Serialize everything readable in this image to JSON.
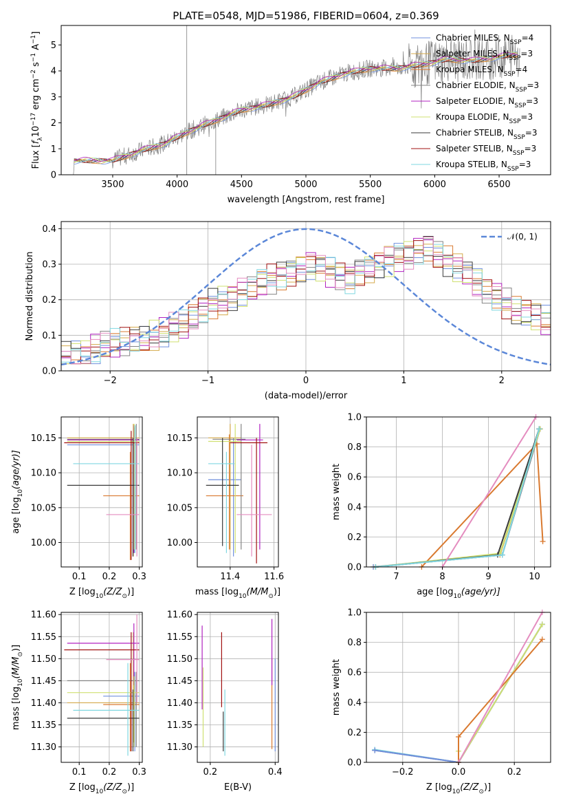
{
  "colors": {
    "Chabrier MILES": "#6f8fdd",
    "Salpeter MILES": "#d4a94a",
    "Kroupa MILES": "#d9792f",
    "Chabrier ELODIE": "#838383",
    "Salpeter ELODIE": "#b020c0",
    "Kroupa ELODIE": "#cfe070",
    "Chabrier STELIB": "#3a3a3a",
    "Salpeter STELIB": "#a01010",
    "Kroupa STELIB": "#7fd7e0",
    "pink": "#e48cbf",
    "normal_curve": "#5b87d8",
    "spectrum": "#7f7f7f"
  },
  "chart_data": [
    {
      "type": "line",
      "title": "PLATE=0548, MJD=51986, FIBERID=0604, z=0.369",
      "xlabel": "wavelength [Angstrom, rest frame]",
      "ylabel_parts": {
        "a": "Flux [",
        "b": "f",
        "c": "λ",
        "d": "10",
        "e": "−17",
        "f": " erg cm",
        "g": "−2",
        "h": " s",
        "i": "−1",
        "j": " A",
        "k": "−1",
        "l": "]"
      },
      "xlim": [
        3100,
        6900
      ],
      "ylim": [
        0,
        5.75
      ],
      "xticks": [
        3500,
        4000,
        4500,
        5000,
        5500,
        6000,
        6500
      ],
      "yticks": [
        0,
        1,
        2,
        3,
        4,
        5
      ],
      "continuum_x": [
        3200,
        3500,
        3700,
        3900,
        4100,
        4300,
        4500,
        4700,
        4900,
        5100,
        5300,
        5500,
        5700,
        5900,
        6100,
        6300,
        6500,
        6700
      ],
      "continuum_y": [
        0.55,
        0.55,
        0.9,
        1.2,
        1.7,
        2.1,
        2.5,
        2.7,
        3.0,
        3.55,
        3.9,
        4.1,
        4.1,
        4.25,
        4.45,
        4.4,
        4.55,
        4.7
      ],
      "legend": [
        {
          "name": "Chabrier MILES",
          "n": "4"
        },
        {
          "name": "Salpeter MILES",
          "n": "3"
        },
        {
          "name": "Kroupa MILES",
          "n": "4"
        },
        {
          "name": "Chabrier ELODIE",
          "n": "3"
        },
        {
          "name": "Salpeter ELODIE",
          "n": "3"
        },
        {
          "name": "Kroupa ELODIE",
          "n": "3"
        },
        {
          "name": "Chabrier STELIB",
          "n": "3"
        },
        {
          "name": "Salpeter STELIB",
          "n": "3"
        },
        {
          "name": "Kroupa STELIB",
          "n": "3"
        }
      ]
    },
    {
      "type": "line",
      "xlabel": "(data-model)/error",
      "ylabel": "Normed distribution",
      "xlim": [
        -2.5,
        2.5
      ],
      "ylim": [
        0,
        0.42
      ],
      "xticks": [
        -2,
        -1,
        0,
        1,
        2
      ],
      "yticks": [
        0.0,
        0.1,
        0.2,
        0.3,
        0.4
      ],
      "legend_label": "𝒩(0, 1)",
      "bin_width": 0.1,
      "bin_start": -2.5,
      "base_heights": [
        0.04,
        0.045,
        0.05,
        0.06,
        0.07,
        0.075,
        0.08,
        0.085,
        0.09,
        0.1,
        0.11,
        0.12,
        0.13,
        0.15,
        0.17,
        0.19,
        0.2,
        0.21,
        0.22,
        0.23,
        0.25,
        0.26,
        0.27,
        0.28,
        0.29,
        0.3,
        0.29,
        0.28,
        0.27,
        0.26,
        0.28,
        0.29,
        0.3,
        0.31,
        0.32,
        0.33,
        0.34,
        0.35,
        0.33,
        0.31,
        0.29,
        0.27,
        0.25,
        0.23,
        0.21,
        0.19,
        0.17,
        0.16,
        0.15,
        0.14
      ]
    },
    {
      "type": "scatter",
      "xlabel_parts": {
        "a": "Z [log",
        "b": "10",
        "c": "(Z/Z",
        "d": "⊙",
        "e": ")]"
      },
      "ylabel_parts": {
        "a": "age  [log",
        "b": "10",
        "c": "(age/yr)]"
      },
      "xlim": [
        0.04,
        0.31
      ],
      "ylim": [
        9.965,
        10.18
      ],
      "xticks": [
        0.1,
        0.2,
        0.3
      ],
      "xtick_labels": [
        "0.1",
        "0.2",
        "0.3"
      ],
      "yticks": [
        10.0,
        10.05,
        10.1,
        10.15
      ],
      "ytick_labels": [
        "10.00",
        "10.05",
        "10.10",
        "10.15"
      ],
      "points": [
        {
          "c": "#6f8fdd",
          "x": 0.285,
          "y": 10.14,
          "xl": 0.06,
          "xh": 0.3,
          "yl": 9.985,
          "yh": 10.165
        },
        {
          "c": "#d4a94a",
          "x": 0.28,
          "y": 10.15,
          "xl": 0.06,
          "xh": 0.3,
          "yl": 9.98,
          "yh": 10.17
        },
        {
          "c": "#d9792f",
          "x": 0.27,
          "y": 10.067,
          "xl": 0.18,
          "xh": 0.3,
          "yl": 9.975,
          "yh": 10.13
        },
        {
          "c": "#838383",
          "x": 0.29,
          "y": 10.148,
          "xl": 0.06,
          "xh": 0.3,
          "yl": 9.99,
          "yh": 10.17
        },
        {
          "c": "#b020c0",
          "x": 0.282,
          "y": 10.147,
          "xl": 0.06,
          "xh": 0.3,
          "yl": 9.985,
          "yh": 10.168
        },
        {
          "c": "#cfe070",
          "x": 0.283,
          "y": 10.145,
          "xl": 0.06,
          "xh": 0.3,
          "yl": 9.99,
          "yh": 10.17
        },
        {
          "c": "#3a3a3a",
          "x": 0.279,
          "y": 10.082,
          "xl": 0.06,
          "xh": 0.3,
          "yl": 9.98,
          "yh": 10.15
        },
        {
          "c": "#a01010",
          "x": 0.273,
          "y": 10.143,
          "xl": 0.05,
          "xh": 0.3,
          "yl": 9.975,
          "yh": 10.16
        },
        {
          "c": "#7fd7e0",
          "x": 0.286,
          "y": 10.113,
          "xl": 0.08,
          "xh": 0.3,
          "yl": 9.985,
          "yh": 10.168
        },
        {
          "c": "#e48cbf",
          "x": 0.292,
          "y": 10.04,
          "xl": 0.19,
          "xh": 0.3,
          "yl": 9.98,
          "yh": 10.15
        }
      ]
    },
    {
      "type": "scatter",
      "xlabel_parts": {
        "a": "mass [log",
        "b": "10",
        "c": "(M/M",
        "d": "⊙",
        "e": ")]"
      },
      "xlim": [
        11.25,
        11.62
      ],
      "ylim": [
        9.965,
        10.18
      ],
      "xticks": [
        11.4,
        11.6
      ],
      "xtick_labels": [
        "11.4",
        "11.6"
      ],
      "yticks": [
        10.0,
        10.05,
        10.1,
        10.15
      ],
      "ytick_labels": [
        "10.00",
        "10.05",
        "10.10",
        "10.15"
      ],
      "points": [
        {
          "c": "#6f8fdd",
          "x": 11.415,
          "y": 10.09,
          "xl": 11.3,
          "xh": 11.45,
          "yl": 9.98,
          "yh": 10.15
        },
        {
          "c": "#d4a94a",
          "x": 11.4,
          "y": 10.15,
          "xl": 11.3,
          "xh": 11.45,
          "yl": 9.99,
          "yh": 10.17
        },
        {
          "c": "#d9792f",
          "x": 11.396,
          "y": 10.067,
          "xl": 11.29,
          "xh": 11.46,
          "yl": 9.99,
          "yh": 10.155
        },
        {
          "c": "#838383",
          "x": 11.45,
          "y": 10.148,
          "xl": 11.32,
          "xh": 11.47,
          "yl": 9.99,
          "yh": 10.17
        },
        {
          "c": "#b020c0",
          "x": 11.535,
          "y": 10.147,
          "xl": 11.43,
          "xh": 11.55,
          "yl": 9.99,
          "yh": 10.17
        },
        {
          "c": "#cfe070",
          "x": 11.423,
          "y": 10.145,
          "xl": 11.3,
          "xh": 11.45,
          "yl": 9.985,
          "yh": 10.17
        },
        {
          "c": "#3a3a3a",
          "x": 11.365,
          "y": 10.082,
          "xl": 11.29,
          "xh": 11.44,
          "yl": 9.995,
          "yh": 10.15
        },
        {
          "c": "#a01010",
          "x": 11.52,
          "y": 10.143,
          "xl": 11.4,
          "xh": 11.57,
          "yl": 9.97,
          "yh": 10.15
        },
        {
          "c": "#7fd7e0",
          "x": 11.383,
          "y": 10.113,
          "xl": 11.3,
          "xh": 11.42,
          "yl": 9.985,
          "yh": 10.13
        },
        {
          "c": "#e48cbf",
          "x": 11.498,
          "y": 10.04,
          "xl": 11.43,
          "xh": 11.59,
          "yl": 9.98,
          "yh": 10.14
        }
      ]
    },
    {
      "type": "line",
      "xlabel_parts": {
        "a": "age  [log",
        "b": "10",
        "c": "(age/yr)]"
      },
      "ylabel": "mass weight",
      "xlim": [
        6.35,
        10.35
      ],
      "ylim": [
        0,
        1.0
      ],
      "xticks": [
        7,
        8,
        9,
        10
      ],
      "xtick_labels": [
        "7",
        "8",
        "9",
        "10"
      ],
      "yticks": [
        0,
        0.2,
        0.4,
        0.6,
        0.8,
        1.0
      ],
      "ytick_labels": [
        "0.0",
        "0.2",
        "0.4",
        "0.6",
        "0.8",
        "1.0"
      ],
      "series": [
        {
          "c": "#d9792f",
          "x": [
            7.55,
            10.05,
            10.18
          ],
          "y": [
            0.0,
            0.82,
            0.17
          ]
        },
        {
          "c": "#d4a94a",
          "x": [
            6.5,
            9.25,
            10.12
          ],
          "y": [
            0.0,
            0.08,
            0.92
          ]
        },
        {
          "c": "#6f8fdd",
          "x": [
            6.5,
            9.3,
            10.12
          ],
          "y": [
            0.0,
            0.08,
            0.92
          ]
        },
        {
          "c": "#838383",
          "x": [
            6.55,
            9.3,
            10.12
          ],
          "y": [
            0.0,
            0.08,
            0.92
          ]
        },
        {
          "c": "#cfe070",
          "x": [
            6.55,
            9.25,
            10.12
          ],
          "y": [
            0.0,
            0.09,
            0.92
          ]
        },
        {
          "c": "#3a3a3a",
          "x": [
            6.55,
            9.2,
            10.1
          ],
          "y": [
            0.0,
            0.08,
            0.92
          ]
        },
        {
          "c": "#7fd7e0",
          "x": [
            6.55,
            9.3,
            10.1
          ],
          "y": [
            0.0,
            0.08,
            0.92
          ]
        },
        {
          "c": "#e48cbf",
          "x": [
            8.0,
            10.03
          ],
          "y": [
            0.0,
            1.0
          ]
        }
      ]
    },
    {
      "type": "scatter",
      "xlabel_parts": {
        "a": "Z [log",
        "b": "10",
        "c": "(Z/Z",
        "d": "⊙",
        "e": ")]"
      },
      "ylabel_parts": {
        "a": "mass [log",
        "b": "10",
        "c": "(M/M",
        "d": "⊙",
        "e": ")]"
      },
      "xlim": [
        0.04,
        0.31
      ],
      "ylim": [
        11.265,
        11.605
      ],
      "xticks": [
        0.1,
        0.2,
        0.3
      ],
      "xtick_labels": [
        "0.1",
        "0.2",
        "0.3"
      ],
      "yticks": [
        11.3,
        11.35,
        11.4,
        11.45,
        11.5,
        11.55,
        11.6
      ],
      "ytick_labels": [
        "11.30",
        "11.35",
        "11.40",
        "11.45",
        "11.50",
        "11.55",
        "11.60"
      ],
      "points": [
        {
          "c": "#6f8fdd",
          "x": 0.285,
          "y": 11.415,
          "xl": 0.18,
          "xh": 0.3,
          "yl": 11.29,
          "yh": 11.47
        },
        {
          "c": "#d4a94a",
          "x": 0.28,
          "y": 11.4,
          "xl": 0.06,
          "xh": 0.3,
          "yl": 11.31,
          "yh": 11.56
        },
        {
          "c": "#d9792f",
          "x": 0.27,
          "y": 11.396,
          "xl": 0.18,
          "xh": 0.3,
          "yl": 11.29,
          "yh": 11.49
        },
        {
          "c": "#838383",
          "x": 0.29,
          "y": 11.45,
          "xl": 0.06,
          "xh": 0.3,
          "yl": 11.3,
          "yh": 11.47
        },
        {
          "c": "#b020c0",
          "x": 0.282,
          "y": 11.535,
          "xl": 0.06,
          "xh": 0.3,
          "yl": 11.44,
          "yh": 11.58
        },
        {
          "c": "#cfe070",
          "x": 0.283,
          "y": 11.423,
          "xl": 0.06,
          "xh": 0.3,
          "yl": 11.3,
          "yh": 11.46
        },
        {
          "c": "#3a3a3a",
          "x": 0.279,
          "y": 11.365,
          "xl": 0.06,
          "xh": 0.3,
          "yl": 11.29,
          "yh": 11.43
        },
        {
          "c": "#a01010",
          "x": 0.273,
          "y": 11.52,
          "xl": 0.05,
          "xh": 0.3,
          "yl": 11.29,
          "yh": 11.56
        },
        {
          "c": "#7fd7e0",
          "x": 0.262,
          "y": 11.383,
          "xl": 0.08,
          "xh": 0.3,
          "yl": 11.28,
          "yh": 11.49
        },
        {
          "c": "#e48cbf",
          "x": 0.292,
          "y": 11.498,
          "xl": 0.19,
          "xh": 0.3,
          "yl": 11.4,
          "yh": 11.6
        }
      ]
    },
    {
      "type": "scatter",
      "xlabel": "E(B-V)",
      "xlim": [
        0.16,
        0.41
      ],
      "ylim": [
        11.265,
        11.605
      ],
      "xticks": [
        0.2,
        0.4
      ],
      "xtick_labels": [
        "0.2",
        "0.4"
      ],
      "yticks": [
        11.3,
        11.35,
        11.4,
        11.45,
        11.5,
        11.55,
        11.6
      ],
      "ytick_labels": [
        "11.30",
        "11.35",
        "11.40",
        "11.45",
        "11.50",
        "11.55",
        "11.60"
      ],
      "points": [
        {
          "c": "#6f8fdd",
          "x": 0.4,
          "yl": 11.29,
          "yh": 11.5
        },
        {
          "c": "#d9792f",
          "x": 0.39,
          "yl": 11.295,
          "yh": 11.5
        },
        {
          "c": "#b020c0",
          "x": 0.39,
          "yl": 11.44,
          "yh": 11.59
        },
        {
          "c": "#b020c0",
          "x": 0.175,
          "yl": 11.385,
          "yh": 11.575
        },
        {
          "c": "#cfe070",
          "x": 0.178,
          "yl": 11.3,
          "yh": 11.48
        },
        {
          "c": "#a01010",
          "x": 0.235,
          "yl": 11.39,
          "yh": 11.56
        },
        {
          "c": "#3a3a3a",
          "x": 0.24,
          "yl": 11.29,
          "yh": 11.38
        },
        {
          "c": "#7fd7e0",
          "x": 0.245,
          "yl": 11.28,
          "yh": 11.43
        }
      ]
    },
    {
      "type": "line",
      "xlabel_parts": {
        "a": "Z [log",
        "b": "10",
        "c": "(Z/Z",
        "d": "⊙",
        "e": ")]"
      },
      "ylabel": "mass weight",
      "xlim": [
        -0.33,
        0.33
      ],
      "ylim": [
        0,
        1.0
      ],
      "xticks": [
        -0.2,
        0.0,
        0.2
      ],
      "xtick_labels": [
        "−0.2",
        "0.0",
        "0.2"
      ],
      "yticks": [
        0,
        0.2,
        0.4,
        0.6,
        0.8,
        1.0
      ],
      "ytick_labels": [
        "0.0",
        "0.2",
        "0.4",
        "0.6",
        "0.8",
        "1.0"
      ],
      "series": [
        {
          "c": "#7fd7e0",
          "x": [
            -0.3,
            0.0,
            0.3
          ],
          "y": [
            0.085,
            0.0,
            0.92
          ]
        },
        {
          "c": "#838383",
          "x": [
            -0.3,
            0.0,
            0.3
          ],
          "y": [
            0.08,
            0.0,
            0.92
          ]
        },
        {
          "c": "#6f8fdd",
          "x": [
            -0.3,
            0.0,
            0.3
          ],
          "y": [
            0.08,
            0.0,
            0.92
          ]
        },
        {
          "c": "#cfe070",
          "x": [
            0.0,
            0.0,
            0.3
          ],
          "y": [
            0.075,
            0.0,
            0.92
          ]
        },
        {
          "c": "#d9792f",
          "x": [
            0.0,
            0.0,
            0.3
          ],
          "y": [
            0.0,
            0.17,
            0.82
          ]
        },
        {
          "c": "#e48cbf",
          "x": [
            0.0,
            0.3
          ],
          "y": [
            0.0,
            1.0
          ]
        }
      ]
    }
  ]
}
